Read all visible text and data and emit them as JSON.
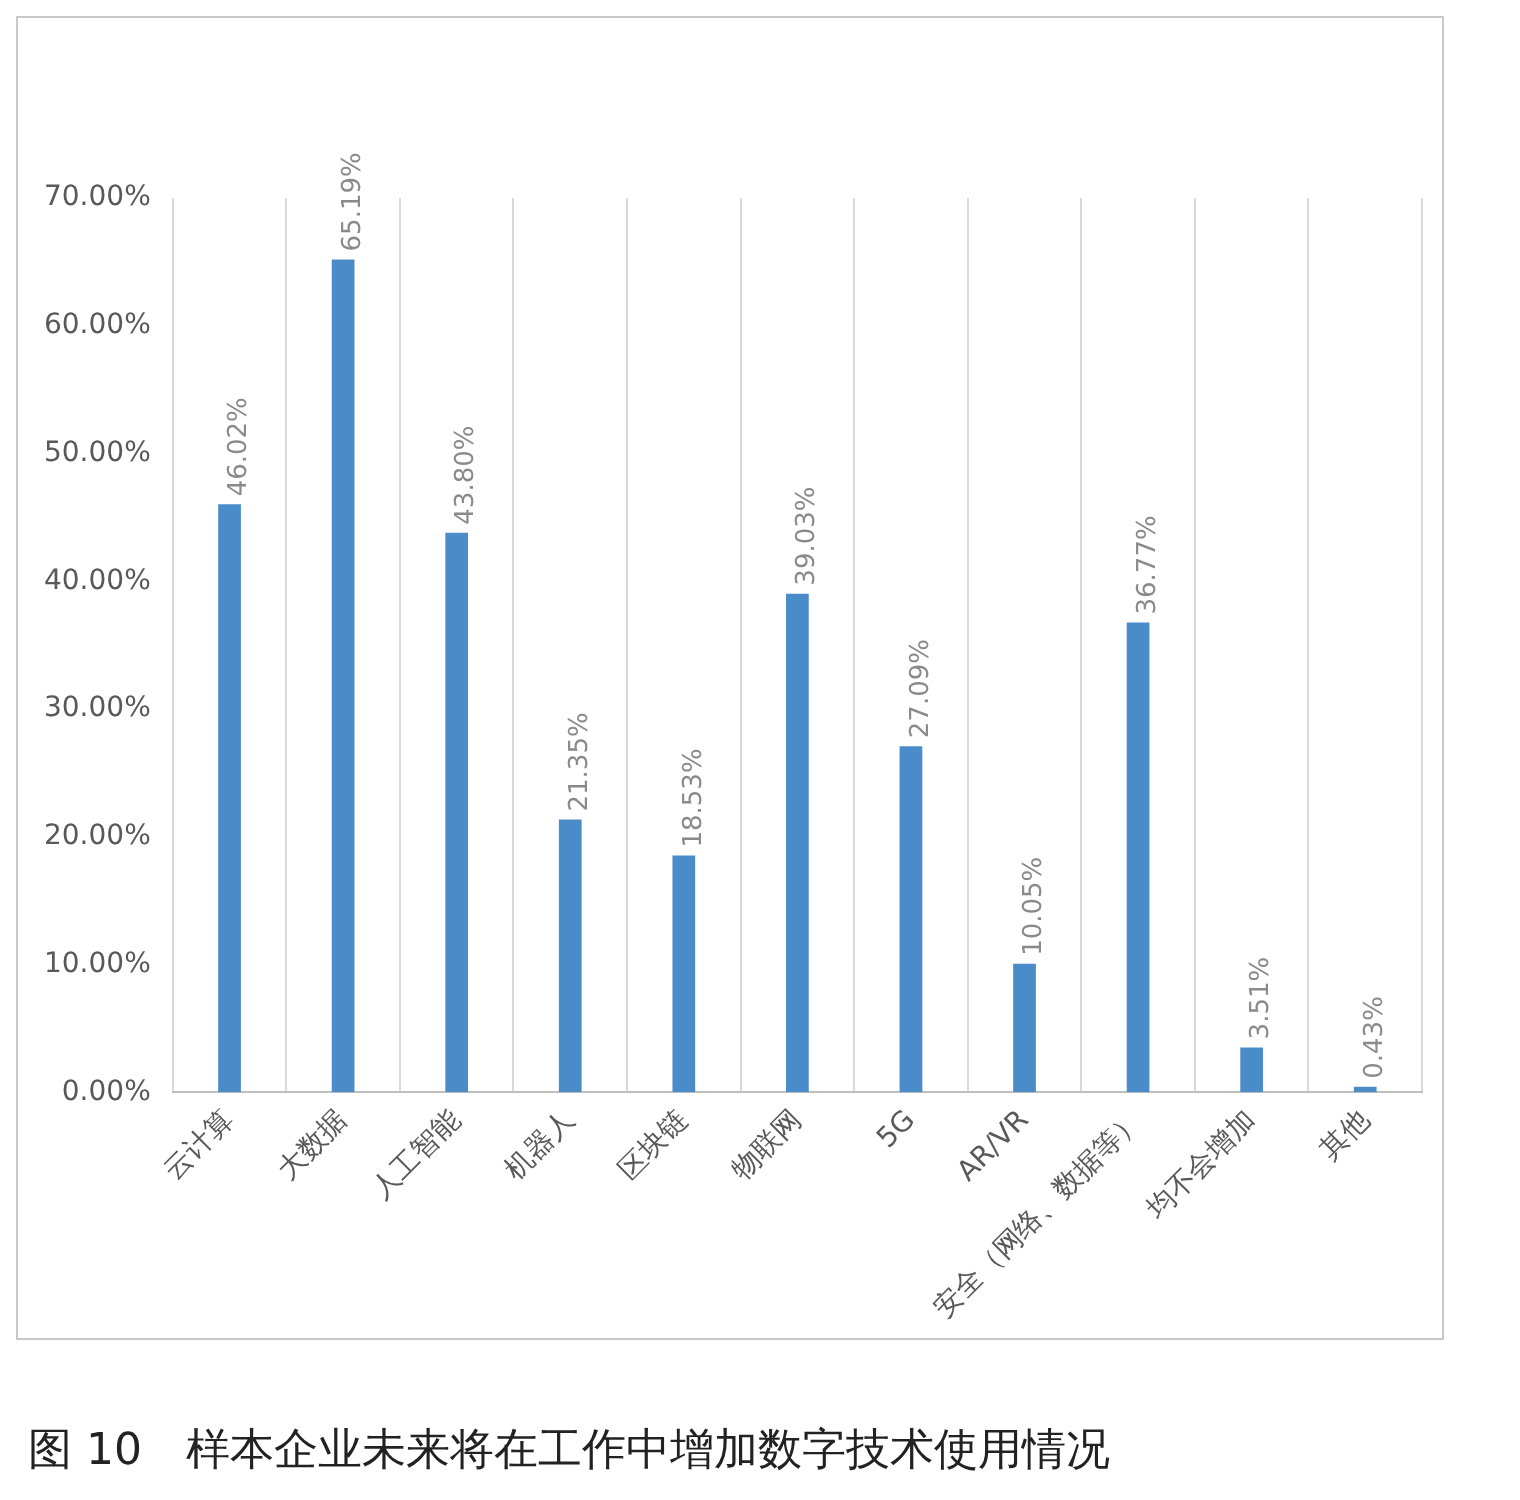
{
  "chart_data": {
    "type": "bar",
    "title": "图 10　样本企业未来将在工作中增加数字技术使用情况",
    "categories": [
      "云计算",
      "大数据",
      "人工智能",
      "机器人",
      "区块链",
      "物联网",
      "5G",
      "AR/VR",
      "安全（网络、数据等）",
      "均不会增加",
      "其他"
    ],
    "values": [
      46.02,
      65.19,
      43.8,
      21.35,
      18.53,
      39.03,
      27.09,
      10.05,
      36.77,
      3.51,
      0.43
    ],
    "value_labels": [
      "46.02%",
      "65.19%",
      "43.80%",
      "21.35%",
      "18.53%",
      "39.03%",
      "27.09%",
      "10.05%",
      "36.77%",
      "3.51%",
      "0.43%"
    ],
    "color": "#4a8bca",
    "ylim": [
      0,
      70
    ],
    "yticks": [
      {
        "value": 0,
        "label": "0.00%"
      },
      {
        "value": 10,
        "label": "10.00%"
      },
      {
        "value": 20,
        "label": "20.00%"
      },
      {
        "value": 30,
        "label": "30.00%"
      },
      {
        "value": 40,
        "label": "40.00%"
      },
      {
        "value": 50,
        "label": "50.00%"
      },
      {
        "value": 60,
        "label": "60.00%"
      },
      {
        "value": 70,
        "label": "70.00%"
      }
    ],
    "grid": "x",
    "legend": false
  }
}
